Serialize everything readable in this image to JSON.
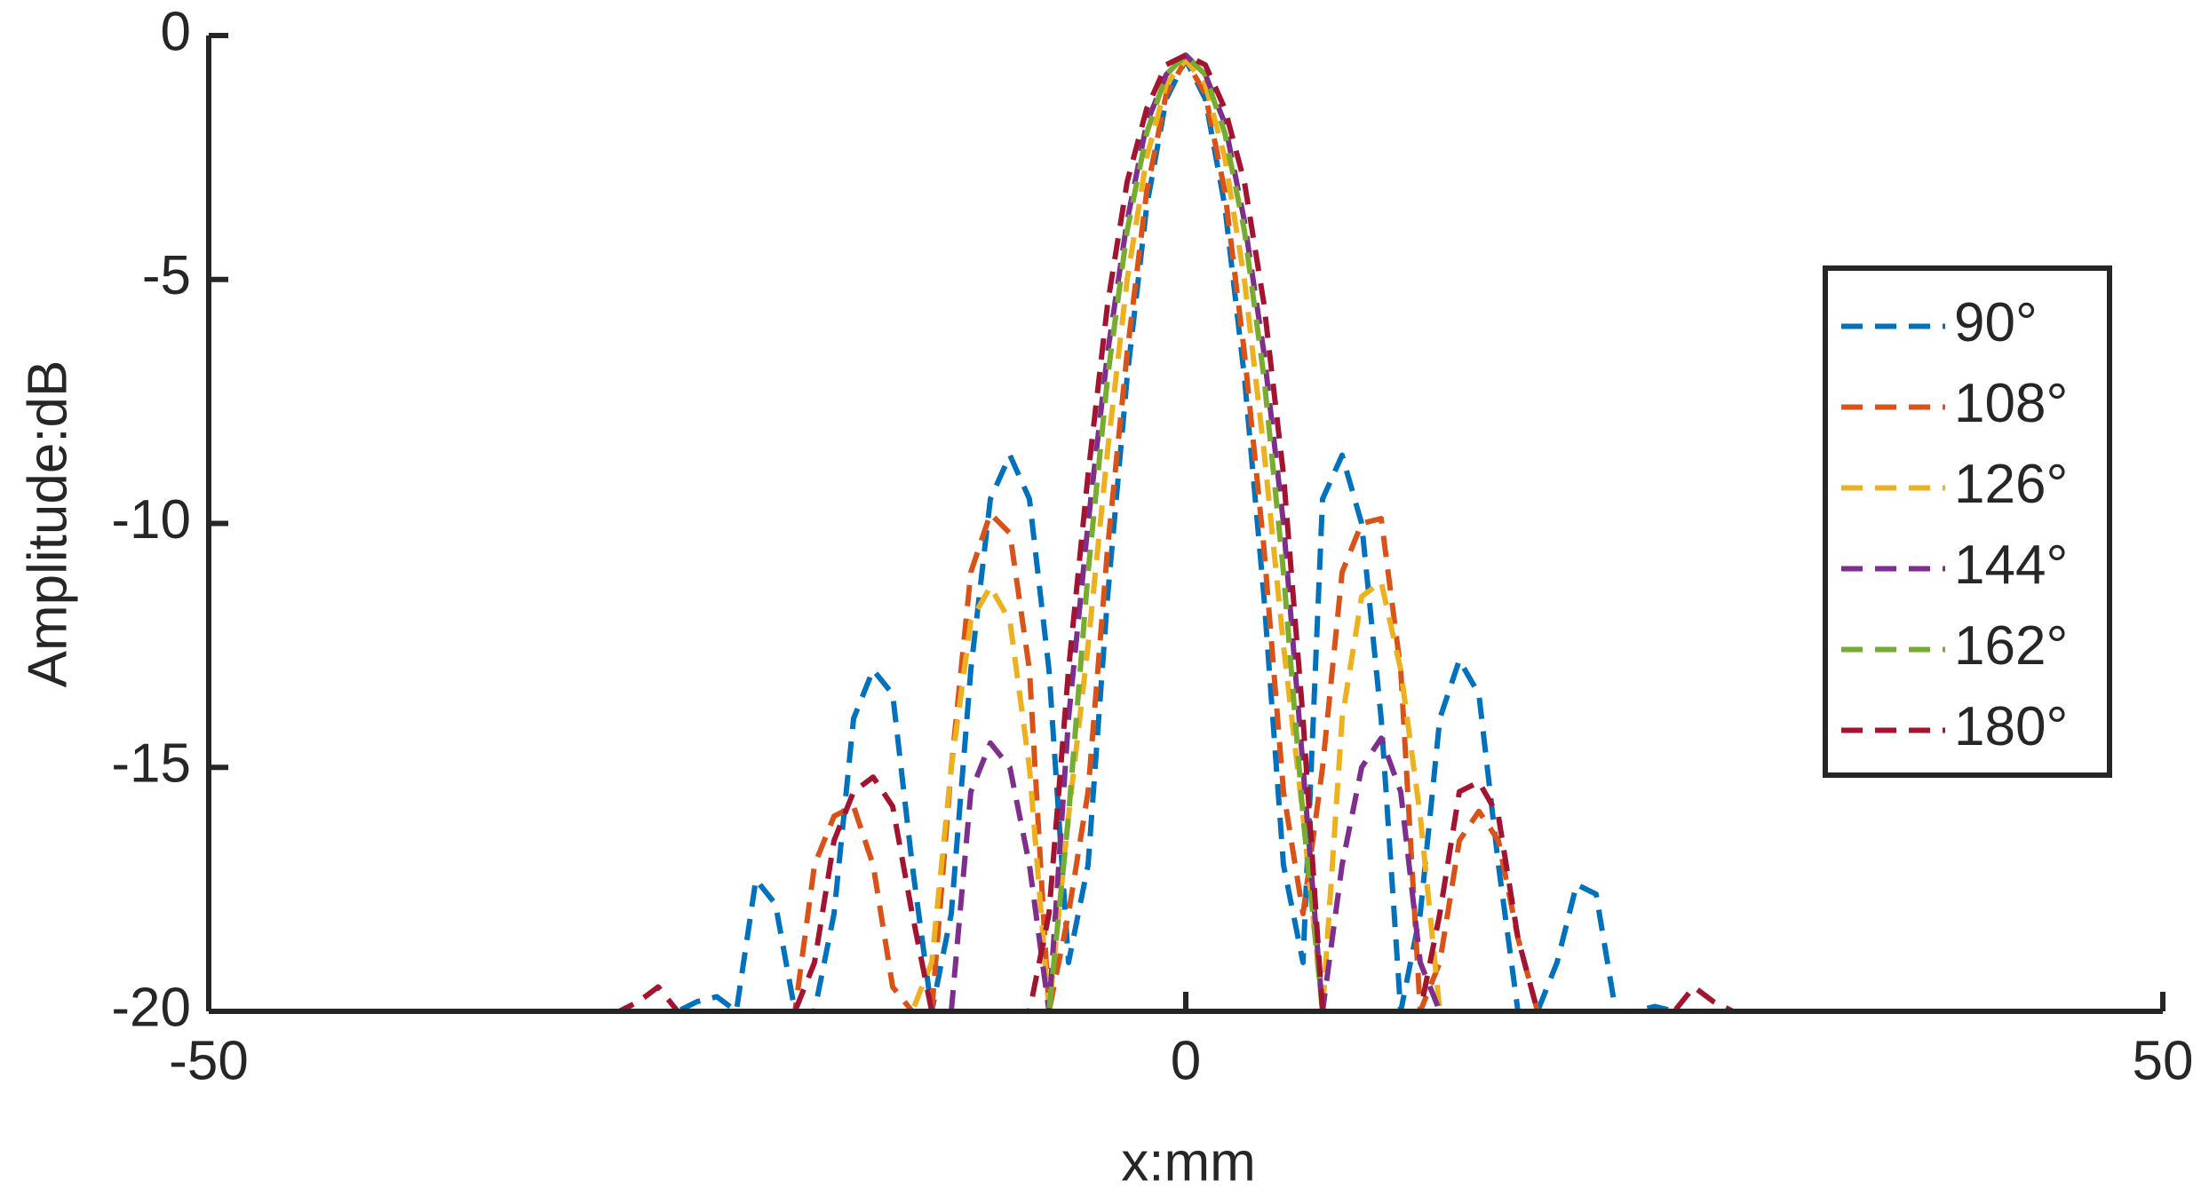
{
  "chart_data": {
    "type": "line",
    "xlabel": "x:mm",
    "ylabel": "Amplitude:dB",
    "x": [
      -50,
      -30,
      -29,
      -28,
      -27,
      -26,
      -25,
      -24,
      -23,
      -22,
      -21,
      -20,
      -19,
      -18,
      -17,
      -16,
      -15,
      -14,
      -13,
      -12,
      -11,
      -10,
      -9,
      -8,
      -7,
      -6,
      -5,
      -4,
      -3,
      -2,
      -1,
      0,
      1,
      2,
      3,
      4,
      5,
      6,
      7,
      8,
      9,
      10,
      11,
      12,
      13,
      14,
      15,
      16,
      17,
      18,
      19,
      20,
      21,
      22,
      23,
      24,
      25,
      26,
      27,
      28,
      29,
      30,
      50
    ],
    "xlim": [
      -50,
      50
    ],
    "xticks": [
      -50,
      0,
      50
    ],
    "ylim": [
      -20,
      0
    ],
    "yticks": [
      -20,
      -15,
      -10,
      -5,
      0
    ],
    "legend": "right",
    "series": [
      {
        "name": "90°",
        "color": "#0072BD",
        "values": [
          -20,
          -20,
          -20,
          -20,
          -20,
          -20,
          -19.8,
          -19.7,
          -20,
          -17.3,
          -17.8,
          -20,
          -20,
          -18,
          -14,
          -13,
          -13.5,
          -17,
          -20,
          -18,
          -13,
          -9.5,
          -8.6,
          -9.5,
          -13,
          -19,
          -17,
          -11.5,
          -7,
          -3.5,
          -1.3,
          -0.5,
          -1.3,
          -3.5,
          -7,
          -11.5,
          -17,
          -19,
          -9.5,
          -8.6,
          -10,
          -14,
          -20,
          -18,
          -14,
          -12.8,
          -13.5,
          -17,
          -20,
          -20,
          -19,
          -17.4,
          -17.6,
          -20,
          -20,
          -19.9,
          -20,
          -20,
          -20,
          -20,
          -20,
          -20,
          -20
        ]
      },
      {
        "name": "108°",
        "color": "#D95319",
        "values": [
          -20,
          -20,
          -20,
          -20,
          -20,
          -20,
          -20,
          -20,
          -20,
          -20,
          -20,
          -20,
          -17,
          -16,
          -15.8,
          -17,
          -19.5,
          -20,
          -20,
          -15,
          -11,
          -9.8,
          -10.2,
          -13,
          -20,
          -18,
          -15.5,
          -10.5,
          -6.5,
          -3.2,
          -1.2,
          -0.5,
          -1.2,
          -3.2,
          -6.5,
          -10.5,
          -15.5,
          -18,
          -15,
          -11,
          -10,
          -9.9,
          -13,
          -20,
          -19,
          -16.5,
          -15.9,
          -16.5,
          -18.5,
          -20,
          -20,
          -20,
          -20,
          -20,
          -20,
          -20,
          -20,
          -20,
          -20,
          -20,
          -20,
          -20,
          -20
        ]
      },
      {
        "name": "126°",
        "color": "#EDB120",
        "values": [
          -20,
          -20,
          -20,
          -20,
          -20,
          -20,
          -20,
          -20,
          -20,
          -20,
          -20,
          -20,
          -20,
          -20,
          -20,
          -20,
          -20,
          -20,
          -19,
          -15,
          -12,
          -11.3,
          -12,
          -15,
          -20,
          -16,
          -12.5,
          -8.5,
          -5,
          -2.5,
          -1,
          -0.5,
          -1,
          -2.5,
          -5,
          -8.5,
          -12.5,
          -16,
          -20,
          -14,
          -11.5,
          -11.2,
          -13,
          -16,
          -20,
          -20,
          -20,
          -20,
          -20,
          -20,
          -20,
          -20,
          -20,
          -20,
          -20,
          -20,
          -20,
          -20,
          -20,
          -20,
          -20,
          -20,
          -20
        ]
      },
      {
        "name": "144°",
        "color": "#7E2F8E",
        "values": [
          -20,
          -20,
          -20,
          -20,
          -20,
          -20,
          -20,
          -20,
          -20,
          -20,
          -20,
          -20,
          -20,
          -20,
          -20,
          -20,
          -20,
          -20,
          -20,
          -20,
          -15.5,
          -14.5,
          -15,
          -17,
          -20,
          -14,
          -10,
          -6.5,
          -3.8,
          -1.8,
          -0.8,
          -0.4,
          -0.8,
          -1.8,
          -3.8,
          -6.5,
          -10,
          -15,
          -20,
          -17,
          -15,
          -14.4,
          -15.5,
          -19,
          -20,
          -20,
          -20,
          -20,
          -20,
          -20,
          -20,
          -20,
          -20,
          -20,
          -20,
          -20,
          -20,
          -20,
          -20,
          -20,
          -20,
          -20,
          -20
        ]
      },
      {
        "name": "162°",
        "color": "#77AC30",
        "values": [
          -20,
          -20,
          -20,
          -20,
          -20,
          -20,
          -20,
          -20,
          -20,
          -20,
          -20,
          -20,
          -20,
          -20,
          -20,
          -20,
          -20,
          -20,
          -20,
          -20,
          -20,
          -20,
          -20,
          -20,
          -20,
          -16,
          -11,
          -7,
          -4,
          -2,
          -0.8,
          -0.4,
          -0.8,
          -2,
          -4,
          -7,
          -11,
          -16,
          -20,
          -20,
          -20,
          -20,
          -20,
          -20,
          -20,
          -20,
          -20,
          -20,
          -20,
          -20,
          -20,
          -20,
          -20,
          -20,
          -20,
          -20,
          -20,
          -20,
          -20,
          -20,
          -20,
          -20,
          -20
        ]
      },
      {
        "name": "180°",
        "color": "#A2142F",
        "values": [
          -20,
          -20,
          -20,
          -19.8,
          -19.5,
          -20,
          -20,
          -20,
          -20,
          -20,
          -20,
          -20,
          -19,
          -16.5,
          -15.5,
          -15.2,
          -15.8,
          -18,
          -20,
          -20,
          -20,
          -20,
          -20,
          -20,
          -18,
          -13,
          -9,
          -5.5,
          -3,
          -1.5,
          -0.6,
          -0.4,
          -0.6,
          -1.5,
          -3,
          -5.5,
          -9,
          -14,
          -20,
          -20,
          -20,
          -20,
          -20,
          -20,
          -18,
          -15.5,
          -15.3,
          -16,
          -18.5,
          -20,
          -20,
          -20,
          -20,
          -20,
          -20,
          -20,
          -20,
          -19.5,
          -19.8,
          -20,
          -20,
          -20,
          -20
        ]
      }
    ]
  }
}
